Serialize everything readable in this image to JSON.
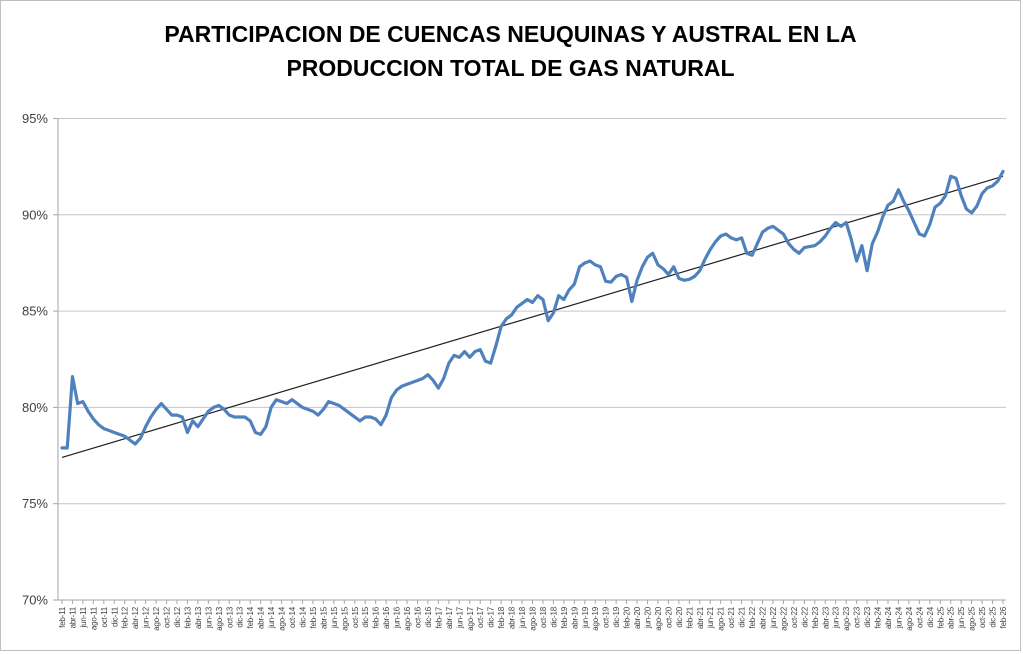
{
  "figure": {
    "title_line1": "PARTICIPACION DE CUENCAS NEUQUINAS Y AUSTRAL EN LA",
    "title_line2": "PRODUCCION TOTAL DE GAS NATURAL"
  },
  "chart_data": {
    "type": "line",
    "title": "PARTICIPACION DE CUENCAS NEUQUINAS Y AUSTRAL EN LA PRODUCCION TOTAL DE GAS NATURAL",
    "ylabel": "",
    "xlabel": "",
    "ylim": [
      70,
      95
    ],
    "y_tick_step": 5,
    "y_tick_labels": [
      "70%",
      "75%",
      "80%",
      "85%",
      "90%",
      "95%"
    ],
    "grid": "horizontal",
    "legend": "none",
    "x_first_month": "feb-11",
    "x_last_month": "feb-26",
    "x_frequency": "monthly",
    "x_tick_interval_months": 2,
    "x_tick_labels": [
      "feb-11",
      "abr-11",
      "jun-11",
      "ago-11",
      "oct-11",
      "dic-11",
      "feb-12",
      "abr-12",
      "jun-12",
      "ago-12",
      "oct-12",
      "dic-12",
      "feb-13",
      "abr-13",
      "jun-13",
      "ago-13",
      "oct-13",
      "dic-13",
      "feb-14",
      "abr-14",
      "jun-14",
      "ago-14",
      "oct-14",
      "dic-14",
      "feb-15",
      "abr-15",
      "jun-15",
      "ago-15",
      "oct-15",
      "dic-15",
      "feb-16",
      "abr-16",
      "jun-16",
      "ago-16",
      "oct-16",
      "dic-16",
      "feb-17",
      "abr-17",
      "jun-17",
      "ago-17",
      "oct-17",
      "dic-17",
      "feb-18",
      "abr-18",
      "jun-18",
      "ago-18",
      "oct-18",
      "dic-18",
      "feb-19",
      "abr-19",
      "jun-19",
      "ago-19",
      "oct-19",
      "dic-19",
      "feb-20",
      "abr-20",
      "jun-20",
      "ago-20",
      "oct-20",
      "dic-20",
      "feb-21",
      "abr-21",
      "jun-21",
      "ago-21",
      "oct-21",
      "dic-21",
      "feb-22",
      "abr-22",
      "jun-22",
      "ago-22",
      "oct-22",
      "dic-22",
      "feb-23",
      "abr-23",
      "jun-23",
      "ago-23",
      "oct-23",
      "dic-23",
      "feb-24",
      "abr-24",
      "jun-24",
      "ago-24",
      "oct-24",
      "dic-24",
      "feb-25",
      "abr-25",
      "jun-25",
      "ago-25",
      "oct-25",
      "dic-25",
      "feb-26"
    ],
    "series": {
      "values": [
        77.9,
        77.9,
        81.6,
        80.2,
        80.3,
        79.8,
        79.4,
        79.1,
        78.9,
        78.8,
        78.7,
        78.6,
        78.5,
        78.3,
        78.1,
        78.4,
        79.0,
        79.5,
        79.9,
        80.2,
        79.9,
        79.6,
        79.6,
        79.5,
        78.7,
        79.3,
        79.0,
        79.4,
        79.8,
        80.0,
        80.1,
        79.9,
        79.6,
        79.5,
        79.5,
        79.5,
        79.3,
        78.7,
        78.6,
        79.0,
        80.0,
        80.4,
        80.3,
        80.2,
        80.4,
        80.2,
        80.0,
        79.9,
        79.8,
        79.6,
        79.9,
        80.3,
        80.2,
        80.1,
        79.9,
        79.7,
        79.5,
        79.3,
        79.5,
        79.5,
        79.4,
        79.1,
        79.6,
        80.5,
        80.9,
        81.1,
        81.2,
        81.3,
        81.4,
        81.5,
        81.7,
        81.4,
        81.0,
        81.5,
        82.3,
        82.7,
        82.6,
        82.9,
        82.6,
        82.9,
        83.0,
        82.4,
        82.3,
        83.2,
        84.2,
        84.6,
        84.8,
        85.2,
        85.4,
        85.6,
        85.45,
        85.8,
        85.6,
        84.5,
        84.9,
        85.8,
        85.6,
        86.1,
        86.4,
        87.3,
        87.5,
        87.6,
        87.4,
        87.3,
        86.55,
        86.5,
        86.8,
        86.9,
        86.75,
        85.5,
        86.6,
        87.3,
        87.8,
        88.0,
        87.4,
        87.2,
        86.9,
        87.3,
        86.7,
        86.6,
        86.65,
        86.8,
        87.1,
        87.7,
        88.2,
        88.6,
        88.9,
        89.0,
        88.8,
        88.7,
        88.8,
        88.0,
        87.9,
        88.5,
        89.1,
        89.3,
        89.4,
        89.2,
        89.0,
        88.5,
        88.2,
        88.0,
        88.3,
        88.35,
        88.4,
        88.6,
        88.9,
        89.3,
        89.6,
        89.4,
        89.6,
        88.7,
        87.6,
        88.4,
        87.1,
        88.5,
        89.1,
        89.9,
        90.5,
        90.7,
        91.3,
        90.7,
        90.2,
        89.6,
        89.0,
        88.9,
        89.5,
        90.4,
        90.6,
        91.0,
        92.0,
        91.9,
        91.0,
        90.3,
        90.1,
        90.45,
        91.1,
        91.4,
        91.5,
        91.75,
        92.25
      ]
    },
    "trendline": {
      "type": "linear",
      "start_value": 77.4,
      "end_value": 92.0
    },
    "colors": {
      "series_line": "#4F81BD",
      "trend_line": "#1f1f1f",
      "gridline": "#c6c6c6",
      "axis_line": "#a6a6a6",
      "tick_text": "#3f3f3f",
      "title_text": "#000000",
      "background": "#ffffff",
      "figure_border": "#bfbfbf"
    }
  }
}
